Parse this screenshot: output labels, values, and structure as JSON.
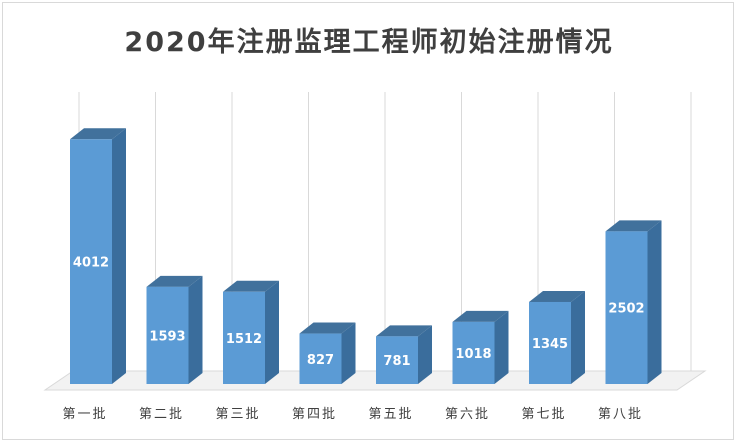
{
  "chart_data": {
    "type": "bar",
    "title": "2020年注册监理工程师初始注册情况",
    "categories": [
      "第一批",
      "第二批",
      "第三批",
      "第四批",
      "第五批",
      "第六批",
      "第七批",
      "第八批"
    ],
    "values": [
      4012,
      1593,
      1512,
      827,
      781,
      1018,
      1345,
      2502
    ],
    "xlabel": "",
    "ylabel": "",
    "ylim": [
      0,
      4500
    ],
    "grid": true,
    "legend": "none",
    "style": "3d-column",
    "colors": {
      "bar_front": "#5b9bd5",
      "bar_side": "#3a6d9c",
      "bar_top": "#41719c",
      "gridline": "#d9d9d9",
      "value_label": "#ffffff"
    }
  }
}
